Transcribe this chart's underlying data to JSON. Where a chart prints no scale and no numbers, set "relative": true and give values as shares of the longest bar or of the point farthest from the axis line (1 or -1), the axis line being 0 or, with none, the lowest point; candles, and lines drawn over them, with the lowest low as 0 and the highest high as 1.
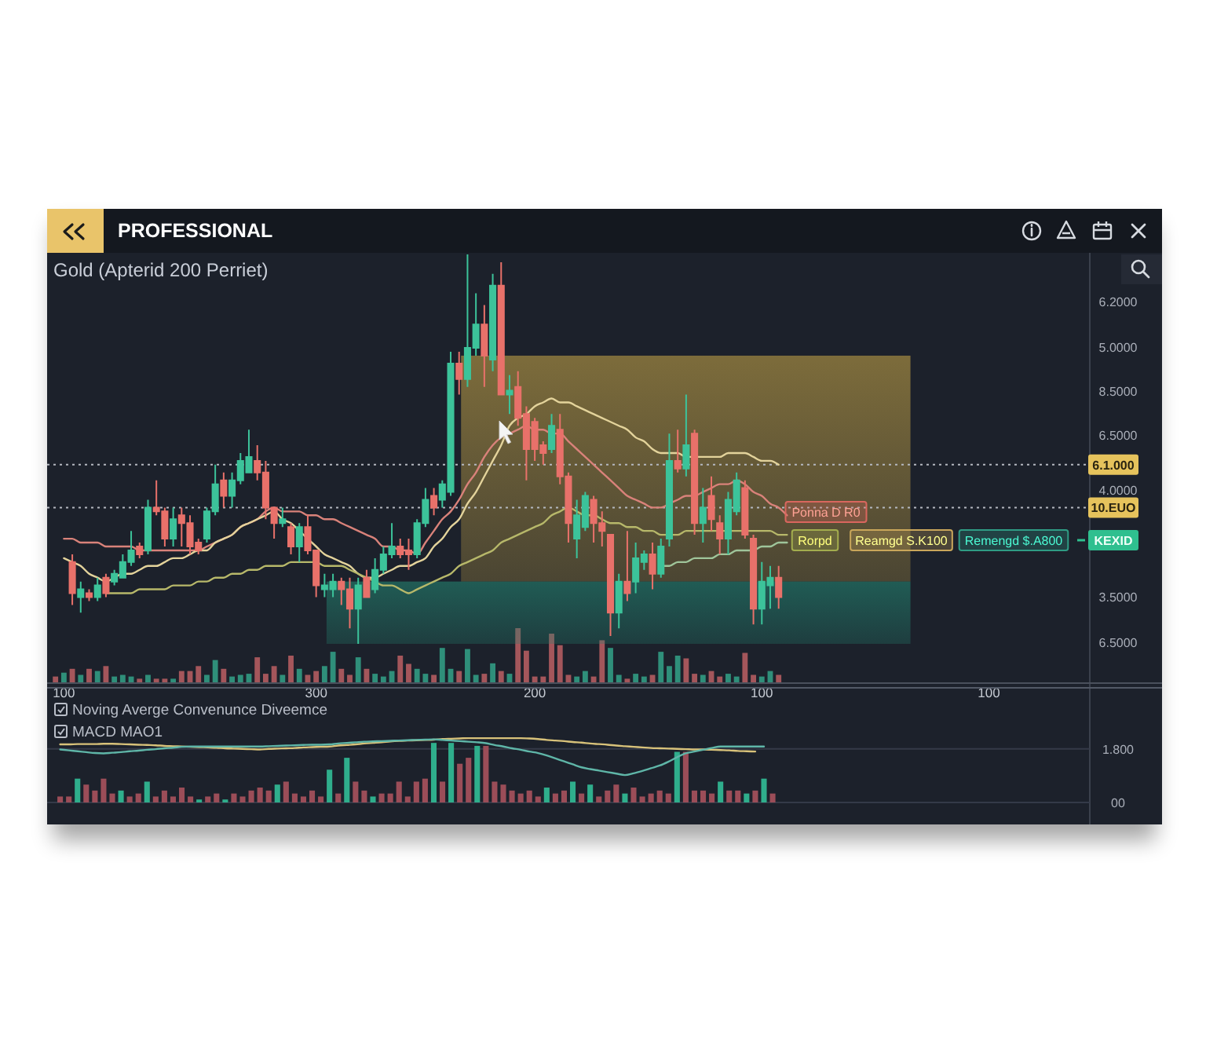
{
  "chart_data": [
    {
      "type": "candlestick",
      "title": "PROFESSIONAL",
      "subtitle": "Gold (Apterid 200 Perriet)",
      "relative": true,
      "tick_labels": false,
      "categories": [
        null,
        null,
        null,
        null,
        null,
        null,
        null,
        null,
        null,
        null,
        null,
        null,
        null,
        null,
        null,
        null,
        null,
        null,
        null,
        null,
        null,
        null,
        null,
        null,
        null,
        null,
        null,
        null,
        null,
        null,
        null,
        null,
        null,
        null,
        null,
        null,
        null,
        null,
        null,
        null,
        null,
        null,
        null,
        null,
        null,
        null,
        null,
        null,
        null,
        null,
        null,
        null,
        null,
        null,
        null,
        null,
        null,
        null,
        null,
        null,
        null,
        null,
        null,
        null,
        null,
        null,
        null,
        null,
        null,
        null,
        null,
        null,
        null,
        null,
        null,
        null,
        null,
        null,
        null,
        null,
        null,
        null,
        null,
        null,
        null,
        null,
        null,
        null,
        null,
        null,
        null,
        null,
        null,
        null,
        null,
        null,
        null,
        null,
        null,
        null,
        null,
        null,
        null,
        null,
        null,
        null,
        null,
        null,
        null,
        null,
        null,
        null,
        null,
        null,
        null,
        null,
        null,
        null,
        null,
        null,
        null,
        null,
        null,
        null
      ],
      "ohlc": [
        null,
        null,
        null,
        [
          0.21,
          0.23,
          0.1,
          0.13
        ],
        [
          0.12,
          0.16,
          0.08,
          0.14
        ],
        [
          0.13,
          0.14,
          0.11,
          0.12
        ],
        [
          0.12,
          0.17,
          0.11,
          0.15
        ],
        [
          0.17,
          0.18,
          0.12,
          0.13
        ],
        [
          0.16,
          0.19,
          0.15,
          0.18
        ],
        [
          0.17,
          0.23,
          0.17,
          0.21
        ],
        [
          0.21,
          0.29,
          0.2,
          0.24
        ],
        [
          0.25,
          0.26,
          0.22,
          0.23
        ],
        [
          0.24,
          0.37,
          0.23,
          0.35
        ],
        [
          0.35,
          0.42,
          0.33,
          0.34
        ],
        [
          0.34,
          0.35,
          0.25,
          0.27
        ],
        [
          0.27,
          0.35,
          0.25,
          0.32
        ],
        [
          0.33,
          0.35,
          0.25,
          0.31
        ],
        [
          0.31,
          0.33,
          0.23,
          0.25
        ],
        [
          0.26,
          0.27,
          0.23,
          0.24
        ],
        [
          0.27,
          0.35,
          0.26,
          0.34
        ],
        [
          0.34,
          0.46,
          0.33,
          0.41
        ],
        [
          0.42,
          0.44,
          0.35,
          0.38
        ],
        [
          0.38,
          0.44,
          0.35,
          0.42
        ],
        [
          0.42,
          0.49,
          0.41,
          0.47
        ],
        [
          0.44,
          0.55,
          0.44,
          0.48
        ],
        [
          0.47,
          0.51,
          0.42,
          0.44
        ],
        [
          0.44,
          0.47,
          0.32,
          0.35
        ],
        [
          0.35,
          0.35,
          0.27,
          0.31
        ],
        [
          0.31,
          0.35,
          0.3,
          0.32
        ],
        [
          0.3,
          0.31,
          0.23,
          0.25
        ],
        [
          0.25,
          0.31,
          0.21,
          0.3
        ],
        [
          0.3,
          0.33,
          0.23,
          0.24
        ],
        [
          0.24,
          0.24,
          0.12,
          0.15
        ],
        [
          0.14,
          0.18,
          0.12,
          0.15
        ],
        [
          0.14,
          0.18,
          0.12,
          0.16
        ],
        [
          0.16,
          0.17,
          0.1,
          0.14
        ],
        [
          0.14,
          0.17,
          0.04,
          0.09
        ],
        [
          0.09,
          0.17,
          0,
          0.15
        ],
        [
          0.17,
          0.19,
          0.12,
          0.12
        ],
        [
          0.14,
          0.22,
          0.13,
          0.19
        ],
        [
          0.19,
          0.25,
          0.18,
          0.23
        ],
        [
          0.23,
          0.31,
          0.22,
          0.25
        ],
        [
          0.25,
          0.27,
          0.22,
          0.23
        ],
        [
          0.24,
          0.27,
          0.19,
          0.23
        ],
        [
          0.23,
          0.32,
          0.22,
          0.31
        ],
        [
          0.31,
          0.4,
          0.3,
          0.37
        ],
        [
          0.38,
          0.4,
          0.33,
          0.35
        ],
        [
          0.37,
          0.42,
          0.35,
          0.41
        ],
        [
          0.39,
          0.75,
          0.38,
          0.72
        ],
        [
          0.72,
          0.75,
          0.64,
          0.68
        ],
        [
          0.68,
          1,
          0.66,
          0.76
        ],
        [
          0.76,
          0.9,
          0.74,
          0.82
        ],
        [
          0.82,
          0.87,
          0.66,
          0.74
        ],
        [
          0.73,
          0.95,
          0.7,
          0.92
        ],
        [
          0.92,
          0.98,
          0.64,
          0.64
        ],
        [
          0.64,
          0.69,
          0.59,
          0.65
        ],
        [
          0.66,
          0.7,
          0.56,
          0.58
        ],
        [
          0.59,
          0.61,
          0.42,
          0.5
        ],
        [
          0.57,
          0.58,
          0.47,
          0.5
        ],
        [
          0.51,
          0.52,
          0.46,
          0.49
        ],
        [
          0.5,
          0.59,
          0.49,
          0.56
        ],
        [
          0.55,
          0.59,
          0.41,
          0.43
        ],
        [
          0.43,
          0.44,
          0.26,
          0.31
        ],
        [
          0.27,
          0.37,
          0.22,
          0.33
        ],
        [
          0.3,
          0.39,
          0.29,
          0.38
        ],
        [
          0.37,
          0.38,
          0.26,
          0.31
        ],
        [
          0.31,
          0.34,
          0.25,
          0.29
        ],
        [
          0.28,
          0.28,
          0.02,
          0.08
        ],
        [
          0.08,
          0.18,
          0.04,
          0.16
        ],
        [
          0.16,
          0.29,
          0.11,
          0.13
        ],
        [
          0.16,
          0.26,
          0.13,
          0.22
        ],
        [
          0.21,
          0.24,
          0.19,
          0.23
        ],
        [
          0.23,
          0.26,
          0.14,
          0.18
        ],
        [
          0.18,
          0.27,
          0.17,
          0.25
        ],
        [
          0.27,
          0.54,
          0.25,
          0.47
        ],
        [
          0.47,
          0.55,
          0.44,
          0.45
        ],
        [
          0.45,
          0.64,
          0.43,
          0.51
        ],
        [
          0.54,
          0.55,
          0.28,
          0.31
        ],
        [
          0.31,
          0.4,
          0.26,
          0.35
        ],
        [
          0.38,
          0.43,
          0.29,
          0.32
        ],
        [
          0.31,
          0.33,
          0.23,
          0.27
        ],
        [
          0.27,
          0.39,
          0.23,
          0.37
        ],
        [
          0.34,
          0.44,
          0.33,
          0.42
        ],
        [
          0.4,
          0.42,
          0.27,
          0.28
        ],
        [
          0.27,
          0.28,
          0.05,
          0.09
        ],
        [
          0.09,
          0.21,
          0.05,
          0.16
        ],
        [
          0.15,
          0.2,
          0.09,
          0.17
        ],
        [
          0.17,
          0.2,
          0.09,
          0.12
        ],
        null,
        null,
        null,
        null,
        null,
        null,
        null,
        null,
        null,
        null,
        null,
        null,
        null,
        null,
        null,
        null,
        null,
        null,
        null,
        null,
        null,
        null,
        null,
        null,
        null,
        null,
        null,
        null,
        null,
        null,
        null,
        null,
        null,
        null,
        null,
        null
      ],
      "series": [
        {
          "type": "line",
          "color": "#d9827a",
          "values": [
            null,
            null,
            0.27,
            0.27,
            0.26,
            0.26,
            0.26,
            0.25,
            0.25,
            0.25,
            0.25,
            0.24,
            0.24,
            0.24,
            0.24,
            0.24,
            0.24,
            0.24,
            0.24,
            0.25,
            0.26,
            0.27,
            0.28,
            0.3,
            0.31,
            0.32,
            0.34,
            0.35,
            0.34,
            0.34,
            0.34,
            0.33,
            0.33,
            0.32,
            0.32,
            0.31,
            0.3,
            0.29,
            0.28,
            0.27,
            0.25,
            0.25,
            0.24,
            0.24,
            0.23,
            0.26,
            0.29,
            0.32,
            0.34,
            0.37,
            0.41,
            0.44,
            0.48,
            0.51,
            0.53,
            0.54,
            0.55,
            0.56,
            0.55,
            0.55,
            0.54,
            0.54,
            0.52,
            0.5,
            0.48,
            0.46,
            0.44,
            0.42,
            0.4,
            0.38,
            0.37,
            0.36,
            0.35,
            0.35,
            0.36,
            0.37,
            0.38,
            0.38,
            0.39,
            0.4,
            0.41,
            0.41,
            0.42,
            0.41,
            0.39,
            0.38,
            0.36,
            0.35,
            0.33,
            null,
            null,
            null,
            null,
            null,
            null,
            null,
            null,
            null,
            null,
            null,
            null,
            null,
            null,
            null,
            null,
            null,
            null,
            null,
            null,
            null,
            null,
            null,
            null,
            null,
            null,
            null,
            null,
            null,
            null,
            null,
            null,
            null,
            null,
            null
          ]
        },
        {
          "type": "line",
          "color": "#e3d39b",
          "values": [
            null,
            null,
            0.22,
            0.21,
            0.2,
            0.18,
            0.17,
            0.16,
            0.17,
            0.18,
            0.18,
            0.19,
            0.2,
            0.2,
            0.21,
            0.22,
            0.22,
            0.23,
            0.24,
            0.24,
            0.26,
            0.27,
            0.28,
            0.3,
            0.31,
            0.32,
            0.33,
            0.34,
            0.32,
            0.31,
            0.29,
            0.27,
            0.25,
            0.23,
            0.22,
            0.21,
            0.2,
            0.18,
            0.17,
            0.17,
            0.18,
            0.19,
            0.2,
            0.2,
            0.21,
            0.22,
            0.25,
            0.27,
            0.3,
            0.32,
            0.36,
            0.39,
            0.43,
            0.47,
            0.51,
            0.56,
            0.58,
            0.59,
            0.61,
            0.62,
            0.63,
            0.62,
            0.62,
            0.61,
            0.6,
            0.59,
            0.58,
            0.57,
            0.56,
            0.55,
            0.53,
            0.52,
            0.5,
            0.49,
            0.49,
            0.49,
            0.48,
            0.48,
            0.48,
            0.48,
            0.48,
            0.49,
            0.49,
            0.49,
            0.48,
            0.47,
            0.47,
            0.46,
            null,
            null,
            null,
            null,
            null,
            null,
            null,
            null,
            null,
            null,
            null,
            null,
            null,
            null,
            null,
            null,
            null,
            null,
            null,
            null,
            null,
            null,
            null,
            null,
            null,
            null,
            null,
            null,
            null,
            null,
            null,
            null,
            null,
            null,
            null,
            null
          ]
        },
        {
          "type": "line",
          "color": "#b7b86a",
          "values": [
            null,
            null,
            null,
            null,
            null,
            null,
            null,
            0.13,
            0.13,
            0.13,
            0.13,
            0.14,
            0.14,
            0.14,
            0.14,
            0.15,
            0.15,
            0.15,
            0.16,
            0.16,
            0.17,
            0.17,
            0.18,
            0.18,
            0.19,
            0.19,
            0.2,
            0.2,
            0.2,
            0.21,
            0.21,
            0.21,
            0.21,
            0.2,
            0.2,
            0.2,
            0.19,
            0.18,
            0.17,
            0.16,
            0.15,
            0.15,
            0.14,
            0.13,
            0.14,
            0.15,
            0.16,
            0.17,
            0.18,
            0.2,
            0.21,
            0.22,
            0.23,
            0.24,
            0.26,
            0.27,
            0.28,
            0.29,
            0.3,
            0.31,
            0.33,
            0.34,
            0.35,
            0.34,
            0.33,
            0.33,
            0.32,
            0.31,
            0.31,
            0.3,
            0.3,
            0.29,
            0.29,
            0.28,
            0.28,
            0.28,
            0.29,
            0.29,
            0.29,
            0.29,
            0.29,
            0.29,
            0.29,
            0.29,
            0.29,
            0.29,
            0.29,
            0.28,
            0.28,
            null,
            null,
            null,
            null,
            null,
            null,
            null,
            null,
            null,
            null,
            null,
            null,
            null,
            null,
            null,
            null,
            null,
            null,
            null,
            null,
            null,
            null,
            null,
            null,
            null,
            null,
            null,
            null,
            null,
            null,
            null,
            null,
            null,
            null,
            null
          ]
        },
        {
          "type": "line",
          "color": "#9fc59a",
          "values": [
            null,
            null,
            null,
            null,
            null,
            null,
            null,
            null,
            null,
            null,
            null,
            null,
            null,
            null,
            null,
            null,
            null,
            null,
            null,
            null,
            null,
            null,
            null,
            null,
            null,
            null,
            null,
            null,
            null,
            null,
            null,
            null,
            null,
            null,
            null,
            null,
            null,
            null,
            null,
            null,
            null,
            null,
            null,
            null,
            null,
            null,
            null,
            null,
            null,
            null,
            null,
            null,
            null,
            null,
            null,
            null,
            null,
            null,
            null,
            null,
            null,
            null,
            null,
            null,
            null,
            null,
            null,
            null,
            null,
            null,
            null,
            null,
            null,
            0.2,
            0.2,
            0.21,
            0.21,
            0.22,
            0.22,
            0.22,
            0.23,
            0.23,
            0.24,
            0.24,
            0.24,
            0.25,
            0.25,
            0.26,
            0.26,
            null,
            null,
            null,
            null,
            null,
            null,
            null,
            null,
            null,
            null,
            null,
            null,
            null,
            null,
            null,
            null,
            null,
            null,
            null,
            null,
            null,
            null,
            null,
            null,
            null,
            null,
            null,
            null,
            null,
            null,
            null,
            null,
            null,
            null,
            null
          ]
        }
      ],
      "ref_lines": [
        {
          "axis": "y",
          "value": 0.46,
          "label": "6.1.000",
          "line_style": "dotted"
        },
        {
          "axis": "y",
          "value": 0.35,
          "label": "10.EUO",
          "line_style": "dotted"
        }
      ],
      "bands": [
        {
          "axis": "y",
          "from": 0.16,
          "to": 0.74,
          "color": "#b89a45"
        },
        {
          "axis": "y",
          "from": 0,
          "to": 0.16,
          "color": "#23806e"
        }
      ],
      "annotations": [
        "Ponna D R0",
        "Rorpd",
        "Reamgd S.K100",
        "Remengd $.A800",
        "KEXID",
        "6.2000",
        "5.0000",
        "8.5000",
        "6.5000",
        "4.0000",
        "3.5000",
        "6.5000"
      ]
    },
    {
      "type": "bar",
      "relative": true,
      "tick_labels": "x",
      "categories": [
        null,
        null,
        "100",
        null,
        null,
        null,
        null,
        null,
        null,
        null,
        null,
        null,
        null,
        null,
        null,
        null,
        null,
        null,
        null,
        null,
        null,
        null,
        null,
        null,
        null,
        null,
        null,
        null,
        null,
        null,
        null,
        null,
        "300",
        null,
        null,
        null,
        null,
        null,
        null,
        null,
        null,
        null,
        null,
        null,
        null,
        null,
        null,
        null,
        null,
        null,
        null,
        null,
        null,
        null,
        null,
        null,
        null,
        null,
        "200",
        null,
        null,
        null,
        null,
        null,
        null,
        null,
        null,
        null,
        null,
        null,
        null,
        null,
        null,
        null,
        null,
        null,
        null,
        null,
        null,
        null,
        null,
        null,
        null,
        null,
        null,
        "100",
        null,
        null,
        null,
        null,
        null,
        null,
        null,
        null,
        null,
        null,
        null,
        null,
        null,
        null,
        null,
        null,
        null,
        null,
        null,
        null,
        null,
        null,
        null,
        null,
        null,
        null,
        "100",
        null,
        null,
        null,
        null,
        null,
        null,
        null,
        null,
        null,
        null,
        null
      ],
      "values": [
        null,
        0.12,
        0.19,
        0.26,
        0.15,
        0.26,
        0.22,
        0.31,
        0.12,
        0.15,
        0.12,
        0.08,
        0.15,
        0.08,
        0.08,
        0.08,
        0.22,
        0.22,
        0.31,
        0.15,
        0.42,
        0.26,
        0.12,
        0.15,
        0.17,
        0.47,
        0.17,
        0.31,
        0.15,
        0.5,
        0.26,
        0.15,
        0.22,
        0.31,
        0.57,
        0.26,
        0.15,
        0.47,
        0.26,
        0.17,
        0.12,
        0.22,
        0.5,
        0.35,
        0.26,
        0.17,
        0.15,
        0.64,
        0.26,
        0.22,
        0.62,
        0.15,
        0.17,
        0.36,
        0.22,
        0.17,
        1,
        0.59,
        0.12,
        0.12,
        0.9,
        0.69,
        0.15,
        0.12,
        0.22,
        0.12,
        0.78,
        0.64,
        0.15,
        0.08,
        0.17,
        0.12,
        0.15,
        0.57,
        0.31,
        0.5,
        0.45,
        0.17,
        0.15,
        0.22,
        0.12,
        0.17,
        0.12,
        0.55,
        0.15,
        0.12,
        0.22,
        0.15,
        null,
        null,
        null,
        null,
        null,
        null,
        null,
        null,
        null,
        null,
        null,
        null,
        null,
        null,
        null,
        null,
        null,
        null,
        null,
        null,
        null,
        null,
        null,
        null,
        null,
        null,
        null,
        null,
        null,
        null,
        null,
        null,
        null,
        null,
        null,
        null
      ],
      "colors": [
        null,
        "#a4565b",
        "#2f8f7a",
        "#a4565b",
        "#2f8f7a",
        "#a4565b",
        "#2f8f7a",
        "#a4565b",
        "#2f8f7a",
        "#2f8f7a",
        "#2f8f7a",
        "#a4565b",
        "#2f8f7a",
        "#a4565b",
        "#a4565b",
        "#2f8f7a",
        "#a4565b",
        "#a4565b",
        "#a4565b",
        "#2f8f7a",
        "#2f8f7a",
        "#a4565b",
        "#2f8f7a",
        "#2f8f7a",
        "#2f8f7a",
        "#a4565b",
        "#a4565b",
        "#a4565b",
        "#2f8f7a",
        "#a4565b",
        "#2f8f7a",
        "#a4565b",
        "#a4565b",
        "#2f8f7a",
        "#2f8f7a",
        "#a4565b",
        "#a4565b",
        "#2f8f7a",
        "#a4565b",
        "#2f8f7a",
        "#2f8f7a",
        "#2f8f7a",
        "#a4565b",
        "#a4565b",
        "#2f8f7a",
        "#2f8f7a",
        "#a4565b",
        "#2f8f7a",
        "#2f8f7a",
        "#a4565b",
        "#2f8f7a",
        "#2f8f7a",
        "#a4565b",
        "#2f8f7a",
        "#a4565b",
        "#2f8f7a",
        "#a4565b",
        "#a4565b",
        "#a4565b",
        "#a4565b",
        "#a4565b",
        "#a4565b",
        "#a4565b",
        "#2f8f7a",
        "#2f8f7a",
        "#a4565b",
        "#a4565b",
        "#2f8f7a",
        "#2f8f7a",
        "#a4565b",
        "#2f8f7a",
        "#2f8f7a",
        "#a4565b",
        "#2f8f7a",
        "#2f8f7a",
        "#2f8f7a",
        "#a4565b",
        "#a4565b",
        "#2f8f7a",
        "#a4565b",
        "#a4565b",
        "#2f8f7a",
        "#2f8f7a",
        "#a4565b",
        "#a4565b",
        "#2f8f7a",
        "#2f8f7a",
        "#a4565b",
        null,
        null,
        null,
        null,
        null,
        null,
        null,
        null,
        null,
        null,
        null,
        null,
        null,
        null,
        null,
        null,
        null,
        null,
        null,
        null,
        null,
        null,
        null,
        null,
        null,
        null,
        null,
        null,
        null,
        null,
        null,
        null,
        null,
        null,
        null,
        null
      ]
    },
    {
      "type": "bar",
      "title": "Noving Averge Convenunce Diveemce",
      "subtitle": "MACD MAO1",
      "ylim": [
        0,
        3.85
      ],
      "yticks": [
        {
          "value": 0,
          "label": "00"
        },
        {
          "value": 1.8,
          "label": "1.800"
        }
      ],
      "grid": "y",
      "tick_labels": "y",
      "categories": [
        null,
        null,
        null,
        null,
        null,
        null,
        null,
        null,
        null,
        null,
        null,
        null,
        null,
        null,
        null,
        null,
        null,
        null,
        null,
        null,
        null,
        null,
        null,
        null,
        null,
        null,
        null,
        null,
        null,
        null,
        null,
        null,
        null,
        null,
        null,
        null,
        null,
        null,
        null,
        null,
        null,
        null,
        null,
        null,
        null,
        null,
        null,
        null,
        null,
        null,
        null,
        null,
        null,
        null,
        null,
        null,
        null,
        null,
        null,
        null,
        null,
        null,
        null,
        null,
        null,
        null,
        null,
        null,
        null,
        null,
        null,
        null,
        null,
        null,
        null,
        null,
        null,
        null,
        null,
        null,
        null,
        null,
        null,
        null,
        null,
        null,
        null,
        null,
        null,
        null,
        null,
        null,
        null,
        null,
        null,
        null,
        null,
        null,
        null,
        null,
        null,
        null,
        null,
        null,
        null,
        null,
        null,
        null,
        null,
        null,
        null,
        null,
        null,
        null,
        null,
        null,
        null,
        null,
        null,
        null
      ],
      "series": [
        {
          "type": "bar",
          "values": [
            null,
            0.2,
            0.2,
            0.8,
            0.6,
            0.4,
            0.8,
            0.3,
            0.4,
            0.2,
            0.3,
            0.7,
            0.2,
            0.4,
            0.2,
            0.5,
            0.2,
            0.1,
            0.2,
            0.3,
            0.1,
            0.3,
            0.2,
            0.4,
            0.5,
            0.4,
            0.6,
            0.7,
            0.3,
            0.2,
            0.4,
            0.2,
            1.1,
            0.3,
            1.5,
            0.7,
            0.4,
            0.2,
            0.3,
            0.3,
            0.7,
            0.2,
            0.7,
            0.8,
            2,
            0.7,
            2,
            1.3,
            1.5,
            1.9,
            1.9,
            0.7,
            0.6,
            0.4,
            0.3,
            0.4,
            0.2,
            0.5,
            0.3,
            0.4,
            0.7,
            0.3,
            0.6,
            0.2,
            0.4,
            0.6,
            0.3,
            0.5,
            0.2,
            0.3,
            0.4,
            0.3,
            1.7,
            1.7,
            0.4,
            0.4,
            0.3,
            0.7,
            0.4,
            0.4,
            0.3,
            0.4,
            0.8,
            0.3,
            null,
            null,
            null,
            null,
            null,
            null,
            null,
            null,
            null,
            null,
            null,
            null,
            null,
            null,
            null,
            null,
            null,
            null,
            null,
            null,
            null,
            null,
            null,
            null,
            null,
            null,
            null,
            null,
            null,
            null,
            null,
            null,
            null,
            null,
            null,
            null
          ],
          "colors": [
            null,
            "#9b4d58",
            "#9b4d58",
            "#2fae8c",
            "#9b4d58",
            "#9b4d58",
            "#9b4d58",
            "#9b4d58",
            "#2fae8c",
            "#9b4d58",
            "#9b4d58",
            "#2fae8c",
            "#9b4d58",
            "#9b4d58",
            "#9b4d58",
            "#9b4d58",
            "#9b4d58",
            "#2fae8c",
            "#9b4d58",
            "#9b4d58",
            "#2fae8c",
            "#9b4d58",
            "#9b4d58",
            "#9b4d58",
            "#9b4d58",
            "#9b4d58",
            "#2fae8c",
            "#9b4d58",
            "#9b4d58",
            "#9b4d58",
            "#9b4d58",
            "#9b4d58",
            "#2fae8c",
            "#9b4d58",
            "#2fae8c",
            "#9b4d58",
            "#9b4d58",
            "#2fae8c",
            "#9b4d58",
            "#9b4d58",
            "#9b4d58",
            "#9b4d58",
            "#9b4d58",
            "#9b4d58",
            "#2fae8c",
            "#9b4d58",
            "#2fae8c",
            "#9b4d58",
            "#9b4d58",
            "#2fae8c",
            "#9b4d58",
            "#9b4d58",
            "#9b4d58",
            "#9b4d58",
            "#9b4d58",
            "#9b4d58",
            "#9b4d58",
            "#2fae8c",
            "#9b4d58",
            "#9b4d58",
            "#2fae8c",
            "#9b4d58",
            "#2fae8c",
            "#9b4d58",
            "#9b4d58",
            "#9b4d58",
            "#2fae8c",
            "#9b4d58",
            "#9b4d58",
            "#9b4d58",
            "#9b4d58",
            "#9b4d58",
            "#2fae8c",
            "#9b4d58",
            "#9b4d58",
            "#9b4d58",
            "#9b4d58",
            "#2fae8c",
            "#9b4d58",
            "#9b4d58",
            "#2fae8c",
            "#9b4d58",
            "#2fae8c",
            "#9b4d58",
            null,
            null,
            null,
            null,
            null,
            null,
            null,
            null,
            null,
            null,
            null,
            null,
            null,
            null,
            null,
            null,
            null,
            null,
            null,
            null,
            null,
            null,
            null,
            null,
            null,
            null,
            null,
            null,
            null,
            null,
            null,
            null,
            null,
            null,
            null,
            null
          ]
        },
        {
          "type": "line",
          "color": "#d8c27a",
          "values": [
            null,
            1.95,
            1.95,
            1.96,
            1.96,
            1.96,
            1.97,
            1.97,
            1.96,
            1.95,
            1.94,
            1.93,
            1.92,
            1.9,
            1.89,
            1.88,
            1.87,
            1.86,
            1.85,
            1.84,
            1.82,
            1.81,
            1.8,
            1.79,
            1.78,
            1.8,
            1.81,
            1.82,
            1.83,
            1.85,
            1.86,
            1.87,
            1.88,
            1.91,
            1.93,
            1.95,
            1.98,
            2,
            2.02,
            2.05,
            2.07,
            2.08,
            2.09,
            2.1,
            2.11,
            2.13,
            2.14,
            2.15,
            2.16,
            2.16,
            2.16,
            2.16,
            2.16,
            2.16,
            2.16,
            2.15,
            2.13,
            2.1,
            2.08,
            2.06,
            2.03,
            2.01,
            1.98,
            1.96,
            1.94,
            1.91,
            1.89,
            1.87,
            1.85,
            1.83,
            1.82,
            1.81,
            1.8,
            1.79,
            1.78,
            1.78,
            1.77,
            1.76,
            1.75,
            1.73,
            1.72,
            1.71,
            null,
            null,
            null,
            null,
            null,
            null,
            null,
            null,
            null,
            null,
            null,
            null,
            null,
            null,
            null,
            null,
            null,
            null,
            null,
            null,
            null,
            null,
            null,
            null,
            null,
            null,
            null,
            null,
            null,
            null,
            null,
            null,
            null,
            null,
            null,
            null,
            null,
            null
          ]
        },
        {
          "type": "line",
          "color": "#5fb6a8",
          "values": [
            null,
            1.78,
            1.75,
            1.72,
            1.69,
            1.66,
            1.65,
            1.67,
            1.69,
            1.72,
            1.74,
            1.77,
            1.79,
            1.82,
            1.84,
            1.87,
            1.88,
            1.88,
            1.88,
            1.88,
            1.88,
            1.88,
            1.88,
            1.88,
            1.88,
            1.89,
            1.9,
            1.91,
            1.92,
            1.93,
            1.94,
            1.94,
            1.95,
            1.98,
            2,
            2.02,
            2.04,
            2.05,
            2.06,
            2.07,
            2.08,
            2.09,
            2.1,
            2.11,
            2.12,
            2.1,
            2.08,
            2.06,
            2.04,
            2.02,
            1.99,
            1.93,
            1.88,
            1.82,
            1.77,
            1.71,
            1.66,
            1.58,
            1.48,
            1.38,
            1.28,
            1.18,
            1.12,
            1.07,
            1.02,
            0.97,
            0.92,
            0.98,
            1.06,
            1.15,
            1.24,
            1.37,
            1.52,
            1.65,
            1.71,
            1.77,
            1.83,
            1.88,
            1.88,
            1.88,
            1.88,
            1.88,
            1.88,
            null,
            null,
            null,
            null,
            null,
            null,
            null,
            null,
            null,
            null,
            null,
            null,
            null,
            null,
            null,
            null,
            null,
            null,
            null,
            null,
            null,
            null,
            null,
            null,
            null,
            null,
            null,
            null,
            null,
            null,
            null,
            null,
            null,
            null,
            null,
            null,
            null
          ]
        }
      ]
    }
  ]
}
